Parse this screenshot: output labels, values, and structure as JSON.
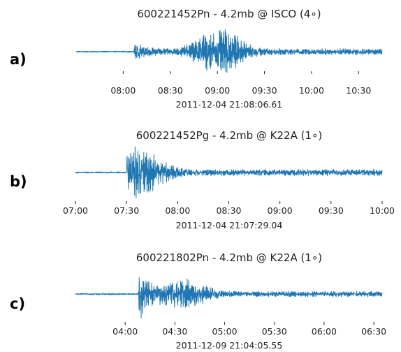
{
  "colors": {
    "trace": "#1f77b4"
  },
  "chart_data": [
    {
      "type": "line",
      "panel_label": "a)",
      "title": "600221452Pn - 4.2mb @ ISCO (4∘)",
      "xlabel": "2011-12-04 21:08:06.61",
      "x_ticks": [
        "08:00",
        "08:30",
        "09:00",
        "09:30",
        "10:00",
        "10:30"
      ],
      "x_tick_values": [
        480,
        510,
        540,
        570,
        600,
        630
      ],
      "xlim": [
        450,
        645
      ],
      "ylim": [
        -1.0,
        1.0
      ],
      "signal": {
        "onset": 487,
        "onset_amp": 0.32,
        "peak_time": 541,
        "peak_amp": 0.98,
        "late_amp": 0.14,
        "end": 645
      }
    },
    {
      "type": "line",
      "panel_label": "b)",
      "title": "600221452Pg - 4.2mb @ K22A (1∘)",
      "xlabel": "2011-12-04 21:07:29.04",
      "x_ticks": [
        "07:00",
        "07:30",
        "08:00",
        "08:30",
        "09:00",
        "09:30",
        "10:00"
      ],
      "x_tick_values": [
        420,
        450,
        480,
        510,
        540,
        570,
        600
      ],
      "xlim": [
        420,
        600
      ],
      "ylim": [
        -1.0,
        1.0
      ],
      "signal": {
        "onset": 450,
        "onset_amp": 0.98,
        "peak_time": 458,
        "peak_amp": 0.65,
        "late_amp": 0.12,
        "end": 600
      }
    },
    {
      "type": "line",
      "panel_label": "c)",
      "title": "600221802Pn - 4.2mb @ K22A (1∘)",
      "xlabel": "2011-12-09 21:04:05.55",
      "x_ticks": [
        "04:00",
        "04:30",
        "05:00",
        "05:30",
        "06:00",
        "06:30"
      ],
      "x_tick_values": [
        240,
        270,
        300,
        330,
        360,
        390
      ],
      "xlim": [
        210,
        395
      ],
      "ylim": [
        -1.0,
        1.0
      ],
      "signal": {
        "onset": 248,
        "onset_amp": 0.98,
        "peak_time": 276,
        "peak_amp": 0.45,
        "late_amp": 0.1,
        "end": 395
      }
    }
  ]
}
